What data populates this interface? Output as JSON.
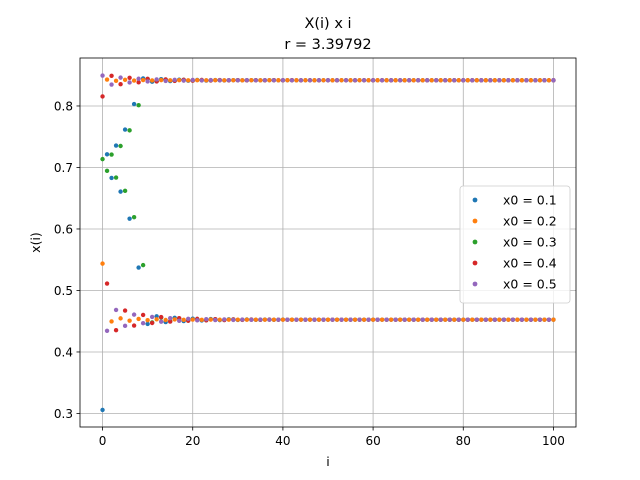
{
  "chart_data": {
    "type": "scatter",
    "title": "X(i) x i",
    "subtitle": "r = 3.39792",
    "xlabel": "i",
    "ylabel": "x(i)",
    "xlim": [
      -5,
      105
    ],
    "ylim": [
      0.278,
      0.878
    ],
    "x_ticks": [
      0,
      20,
      40,
      60,
      80,
      100
    ],
    "x_tick_labels": [
      "0",
      "20",
      "40",
      "60",
      "80",
      "100"
    ],
    "y_ticks": [
      0.3,
      0.4,
      0.5,
      0.6,
      0.7,
      0.8
    ],
    "y_tick_labels": [
      "0.3",
      "0.4",
      "0.5",
      "0.6",
      "0.7",
      "0.8"
    ],
    "grid": true,
    "legend_position": "center-right",
    "r": 3.39792,
    "x_range": [
      0,
      100
    ],
    "series": [
      {
        "name": "x0 = 0.1",
        "x0": 0.1,
        "color": "#1f77b4"
      },
      {
        "name": "x0 = 0.2",
        "x0": 0.2,
        "color": "#ff7f0e"
      },
      {
        "name": "x0 = 0.3",
        "x0": 0.3,
        "color": "#2ca02c"
      },
      {
        "name": "x0 = 0.4",
        "x0": 0.4,
        "color": "#d62728"
      },
      {
        "name": "x0 = 0.5",
        "x0": 0.5,
        "color": "#9467bd"
      }
    ]
  }
}
